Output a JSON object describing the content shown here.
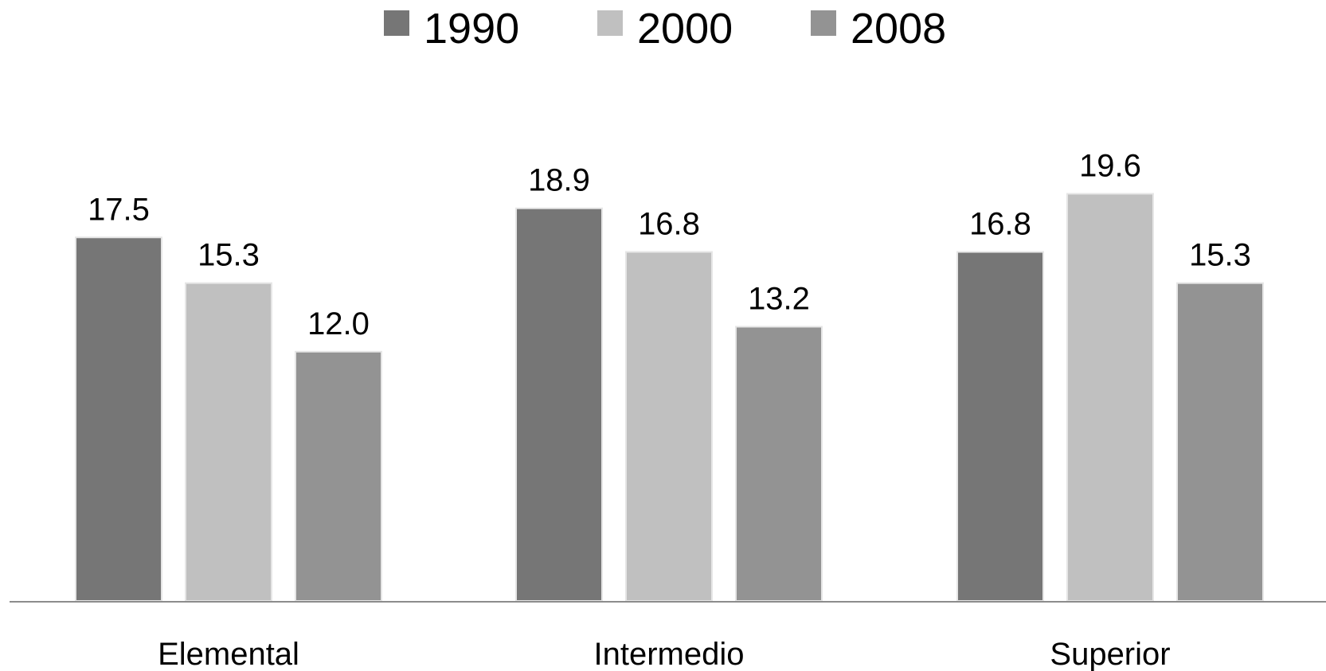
{
  "chart_data": {
    "type": "bar",
    "categories": [
      "Elemental",
      "Intermedio",
      "Superior"
    ],
    "series": [
      {
        "name": "1990",
        "values": [
          17.5,
          18.9,
          16.8
        ],
        "color": "#767676"
      },
      {
        "name": "2000",
        "values": [
          15.3,
          16.8,
          19.6
        ],
        "color": "#c0c0c0"
      },
      {
        "name": "2008",
        "values": [
          12.0,
          13.2,
          15.3
        ],
        "color": "#939393"
      }
    ],
    "value_labels": [
      [
        "17.5",
        "18.9",
        "16.8"
      ],
      [
        "15.3",
        "16.8",
        "19.6"
      ],
      [
        "12.0",
        "13.2",
        "15.3"
      ]
    ],
    "ylim": [
      0,
      27.3
    ],
    "legend_position": "top-center",
    "grid": false,
    "axis_color": "#8c8c8c"
  }
}
